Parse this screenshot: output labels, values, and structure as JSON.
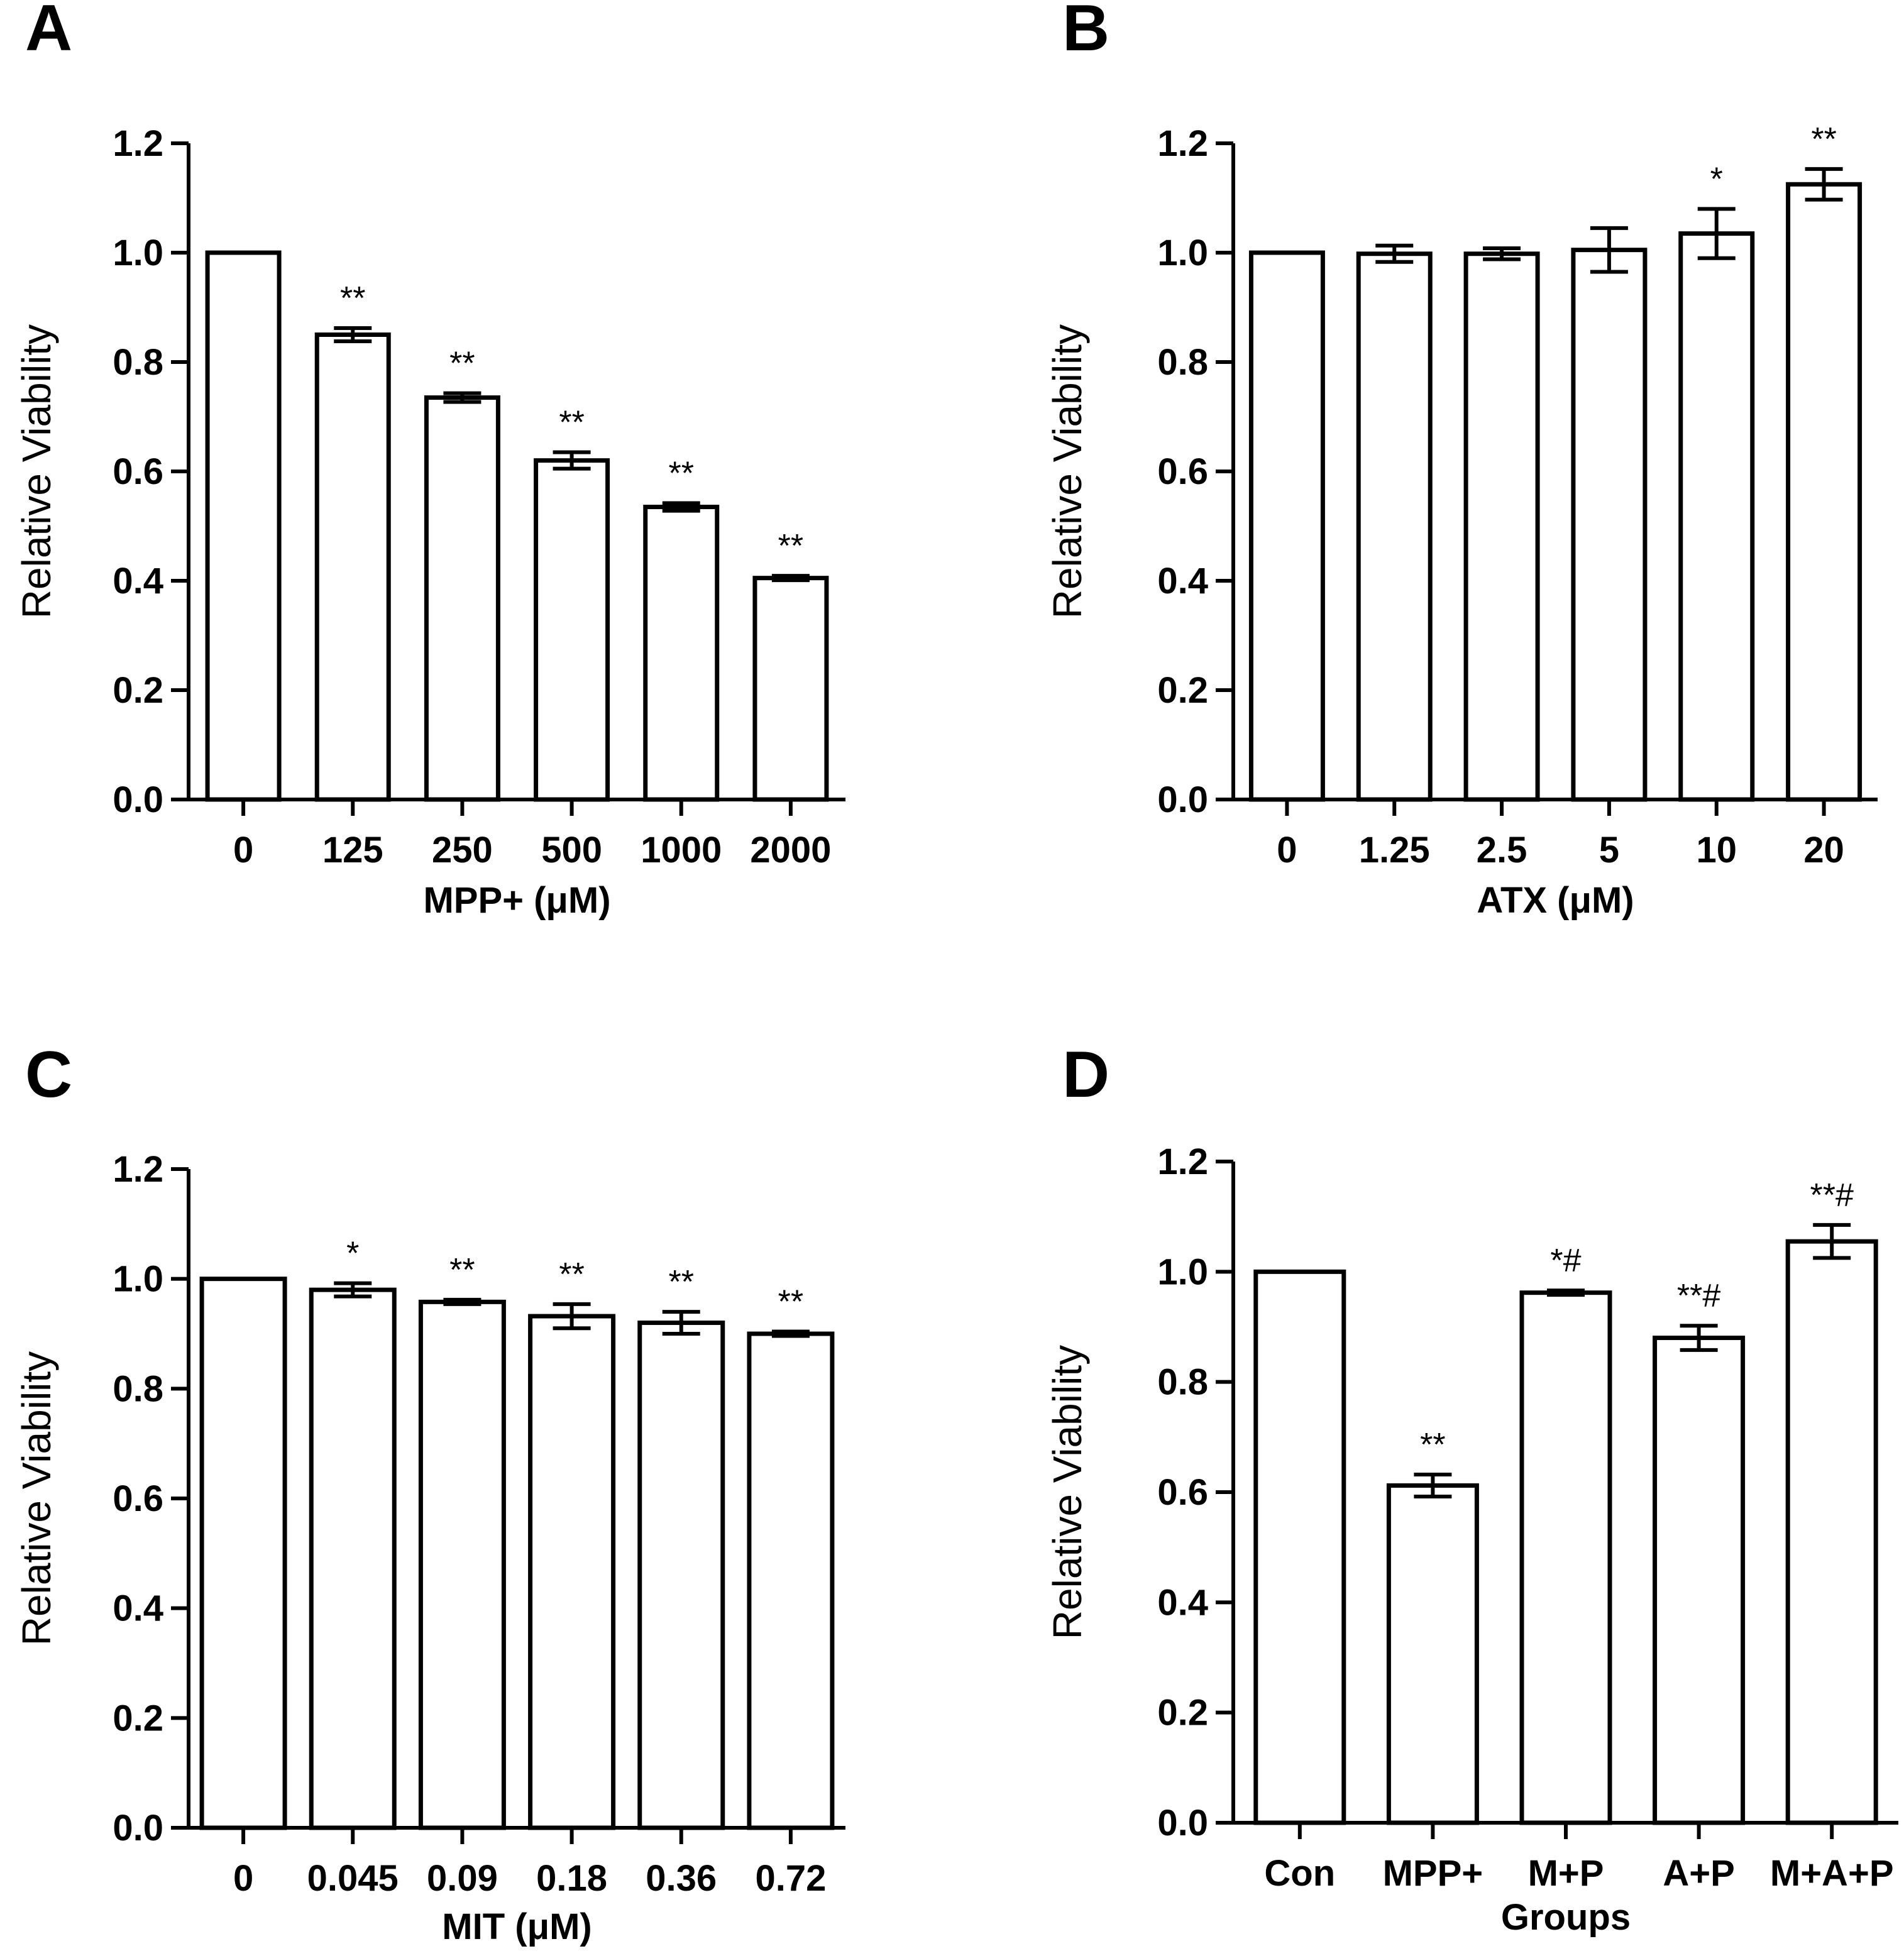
{
  "chart_data": [
    {
      "type": "bar",
      "panel": "A",
      "categories": [
        "0",
        "125",
        "250",
        "500",
        "1000",
        "2000"
      ],
      "values": [
        1.0,
        0.85,
        0.735,
        0.62,
        0.535,
        0.405
      ],
      "errors": [
        0.0,
        0.012,
        0.008,
        0.015,
        0.007,
        0.004
      ],
      "annotations": [
        "",
        "**",
        "**",
        "**",
        "**",
        "**"
      ],
      "xlabel": "MPP+ (μM)",
      "ylabel": "Relative Viability",
      "ylim": [
        0,
        1.2
      ],
      "yticks": [
        "0.0",
        "0.2",
        "0.4",
        "0.6",
        "0.8",
        "1.0",
        "1.2"
      ]
    },
    {
      "type": "bar",
      "panel": "B",
      "categories": [
        "0",
        "1.25",
        "2.5",
        "5",
        "10",
        "20"
      ],
      "values": [
        1.0,
        0.998,
        0.998,
        1.005,
        1.035,
        1.125
      ],
      "errors": [
        0.0,
        0.015,
        0.01,
        0.04,
        0.045,
        0.028
      ],
      "annotations": [
        "",
        "",
        "",
        "",
        "*",
        "**"
      ],
      "xlabel": "ATX (μM)",
      "ylabel": "Relative Viability",
      "ylim": [
        0,
        1.2
      ],
      "yticks": [
        "0.0",
        "0.2",
        "0.4",
        "0.6",
        "0.8",
        "1.0",
        "1.2"
      ]
    },
    {
      "type": "bar",
      "panel": "C",
      "categories": [
        "0",
        "0.045",
        "0.09",
        "0.18",
        "0.36",
        "0.72"
      ],
      "values": [
        1.0,
        0.98,
        0.958,
        0.932,
        0.92,
        0.9
      ],
      "errors": [
        0.0,
        0.012,
        0.004,
        0.022,
        0.02,
        0.004
      ],
      "annotations": [
        "",
        "*",
        "**",
        "**",
        "**",
        "**"
      ],
      "xlabel": "MIT (μM)",
      "ylabel": "Relative Viability",
      "ylim": [
        0,
        1.2
      ],
      "yticks": [
        "0.0",
        "0.2",
        "0.4",
        "0.6",
        "0.8",
        "1.0",
        "1.2"
      ]
    },
    {
      "type": "bar",
      "panel": "D",
      "categories": [
        "Con",
        "MPP+",
        "M+P",
        "A+P",
        "M+A+P"
      ],
      "values": [
        1.0,
        0.612,
        0.962,
        0.88,
        1.055
      ],
      "errors": [
        0.0,
        0.02,
        0.004,
        0.022,
        0.03
      ],
      "annotations": [
        "",
        "**",
        "*#",
        "**#",
        "**#"
      ],
      "xlabel": "Groups",
      "ylabel": "Relative Viability",
      "ylim": [
        0,
        1.2
      ],
      "yticks": [
        "0.0",
        "0.2",
        "0.4",
        "0.6",
        "0.8",
        "1.0",
        "1.2"
      ]
    }
  ]
}
